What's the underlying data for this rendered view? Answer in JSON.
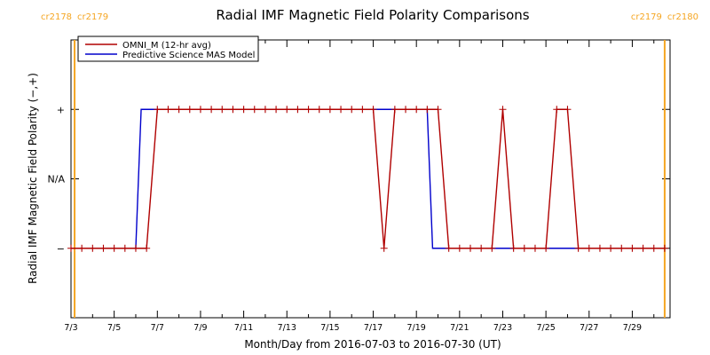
{
  "chart_data": {
    "type": "line",
    "title": "Radial IMF Magnetic Field Polarity Comparisons",
    "xlabel": "Month/Day from 2016-07-03 to 2016-07-30 (UT)",
    "ylabel": "Radial IMF Magnetic Field Polarity (−,+)",
    "x_range": [
      "2016-07-03",
      "2016-07-30"
    ],
    "x_ticks": [
      "7/3",
      "7/5",
      "7/7",
      "7/9",
      "7/11",
      "7/13",
      "7/15",
      "7/17",
      "7/19",
      "7/21",
      "7/23",
      "7/25",
      "7/27",
      "7/29"
    ],
    "y_levels": [
      -1,
      0,
      1
    ],
    "y_ticks": [
      "−",
      "N/A",
      "+"
    ],
    "ylim": [
      -2,
      2
    ],
    "carrington_markers": [
      {
        "left": "cr2178",
        "right": "cr2179",
        "date": "2016-07-03 04:00",
        "color": "#f5a623"
      },
      {
        "left": "cr2179",
        "right": "cr2180",
        "date": "2016-07-30 12:00",
        "color": "#f5a623"
      }
    ],
    "legend": {
      "position": "top-left"
    },
    "series": [
      {
        "name": "OMNI_M (12-hr avg)",
        "color": "#b00000",
        "marker": "plus",
        "x": [
          "2016-07-03 00:00",
          "2016-07-03 12:00",
          "2016-07-04 00:00",
          "2016-07-04 12:00",
          "2016-07-05 00:00",
          "2016-07-05 12:00",
          "2016-07-06 00:00",
          "2016-07-06 12:00",
          "2016-07-07 00:00",
          "2016-07-07 12:00",
          "2016-07-08 00:00",
          "2016-07-08 12:00",
          "2016-07-09 00:00",
          "2016-07-09 12:00",
          "2016-07-10 00:00",
          "2016-07-10 12:00",
          "2016-07-11 00:00",
          "2016-07-11 12:00",
          "2016-07-12 00:00",
          "2016-07-12 12:00",
          "2016-07-13 00:00",
          "2016-07-13 12:00",
          "2016-07-14 00:00",
          "2016-07-14 12:00",
          "2016-07-15 00:00",
          "2016-07-15 12:00",
          "2016-07-16 00:00",
          "2016-07-16 12:00",
          "2016-07-17 00:00",
          "2016-07-17 12:00",
          "2016-07-18 00:00",
          "2016-07-18 12:00",
          "2016-07-19 00:00",
          "2016-07-19 12:00",
          "2016-07-20 00:00",
          "2016-07-20 12:00",
          "2016-07-21 00:00",
          "2016-07-21 12:00",
          "2016-07-22 00:00",
          "2016-07-22 12:00",
          "2016-07-23 00:00",
          "2016-07-23 12:00",
          "2016-07-24 00:00",
          "2016-07-24 12:00",
          "2016-07-25 00:00",
          "2016-07-25 12:00",
          "2016-07-26 00:00",
          "2016-07-26 12:00",
          "2016-07-27 00:00",
          "2016-07-27 12:00",
          "2016-07-28 00:00",
          "2016-07-28 12:00",
          "2016-07-29 00:00",
          "2016-07-29 12:00",
          "2016-07-30 00:00",
          "2016-07-30 12:00"
        ],
        "y": [
          -1,
          -1,
          -1,
          -1,
          -1,
          -1,
          -1,
          -1,
          1,
          1,
          1,
          1,
          1,
          1,
          1,
          1,
          1,
          1,
          1,
          1,
          1,
          1,
          1,
          1,
          1,
          1,
          1,
          1,
          1,
          -1,
          1,
          1,
          1,
          1,
          1,
          -1,
          -1,
          -1,
          -1,
          -1,
          1,
          -1,
          -1,
          -1,
          -1,
          1,
          1,
          -1,
          -1,
          -1,
          -1,
          -1,
          -1,
          -1,
          -1,
          -1
        ]
      },
      {
        "name": "Predictive Science MAS Model",
        "color": "#0000cc",
        "marker": "none",
        "x": [
          "2016-07-03 00:00",
          "2016-07-06 00:00",
          "2016-07-06 06:00",
          "2016-07-19 12:00",
          "2016-07-19 18:00",
          "2016-07-30 12:00"
        ],
        "y": [
          -1,
          -1,
          1,
          1,
          -1,
          -1
        ]
      }
    ]
  }
}
